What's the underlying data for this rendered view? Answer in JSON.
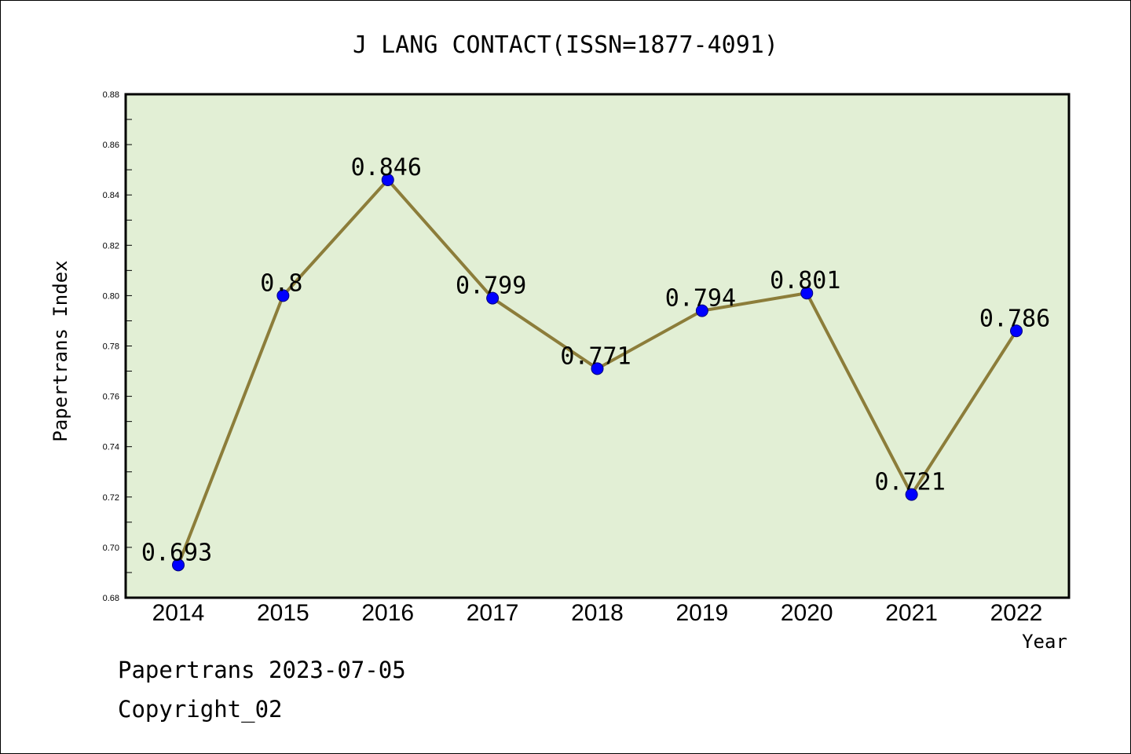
{
  "chart_data": {
    "type": "line",
    "title": "J LANG CONTACT(ISSN=1877-4091)",
    "xlabel": "Year",
    "ylabel": "Papertrans Index",
    "categories": [
      "2014",
      "2015",
      "2016",
      "2017",
      "2018",
      "2019",
      "2020",
      "2021",
      "2022"
    ],
    "series": [
      {
        "values": [
          0.693,
          0.8,
          0.846,
          0.799,
          0.771,
          0.794,
          0.801,
          0.721,
          0.786
        ]
      }
    ],
    "data_labels": [
      "0.693",
      "0.8",
      "0.846",
      "0.799",
      "0.771",
      "0.794",
      "0.801",
      "0.721",
      "0.786"
    ],
    "ylim": [
      0.68,
      0.88
    ],
    "yticks": [
      "0.68",
      "0.70",
      "0.72",
      "0.74",
      "0.76",
      "0.78",
      "0.80",
      "0.82",
      "0.84",
      "0.86",
      "0.88"
    ],
    "grid": false,
    "legend": "none",
    "colors": {
      "plot_background": "#e2efd5",
      "line": "#8c7d3a",
      "marker": "#0000ff"
    }
  },
  "footer": {
    "line1": "Papertrans 2023-07-05",
    "line2": "Copyright_02"
  }
}
